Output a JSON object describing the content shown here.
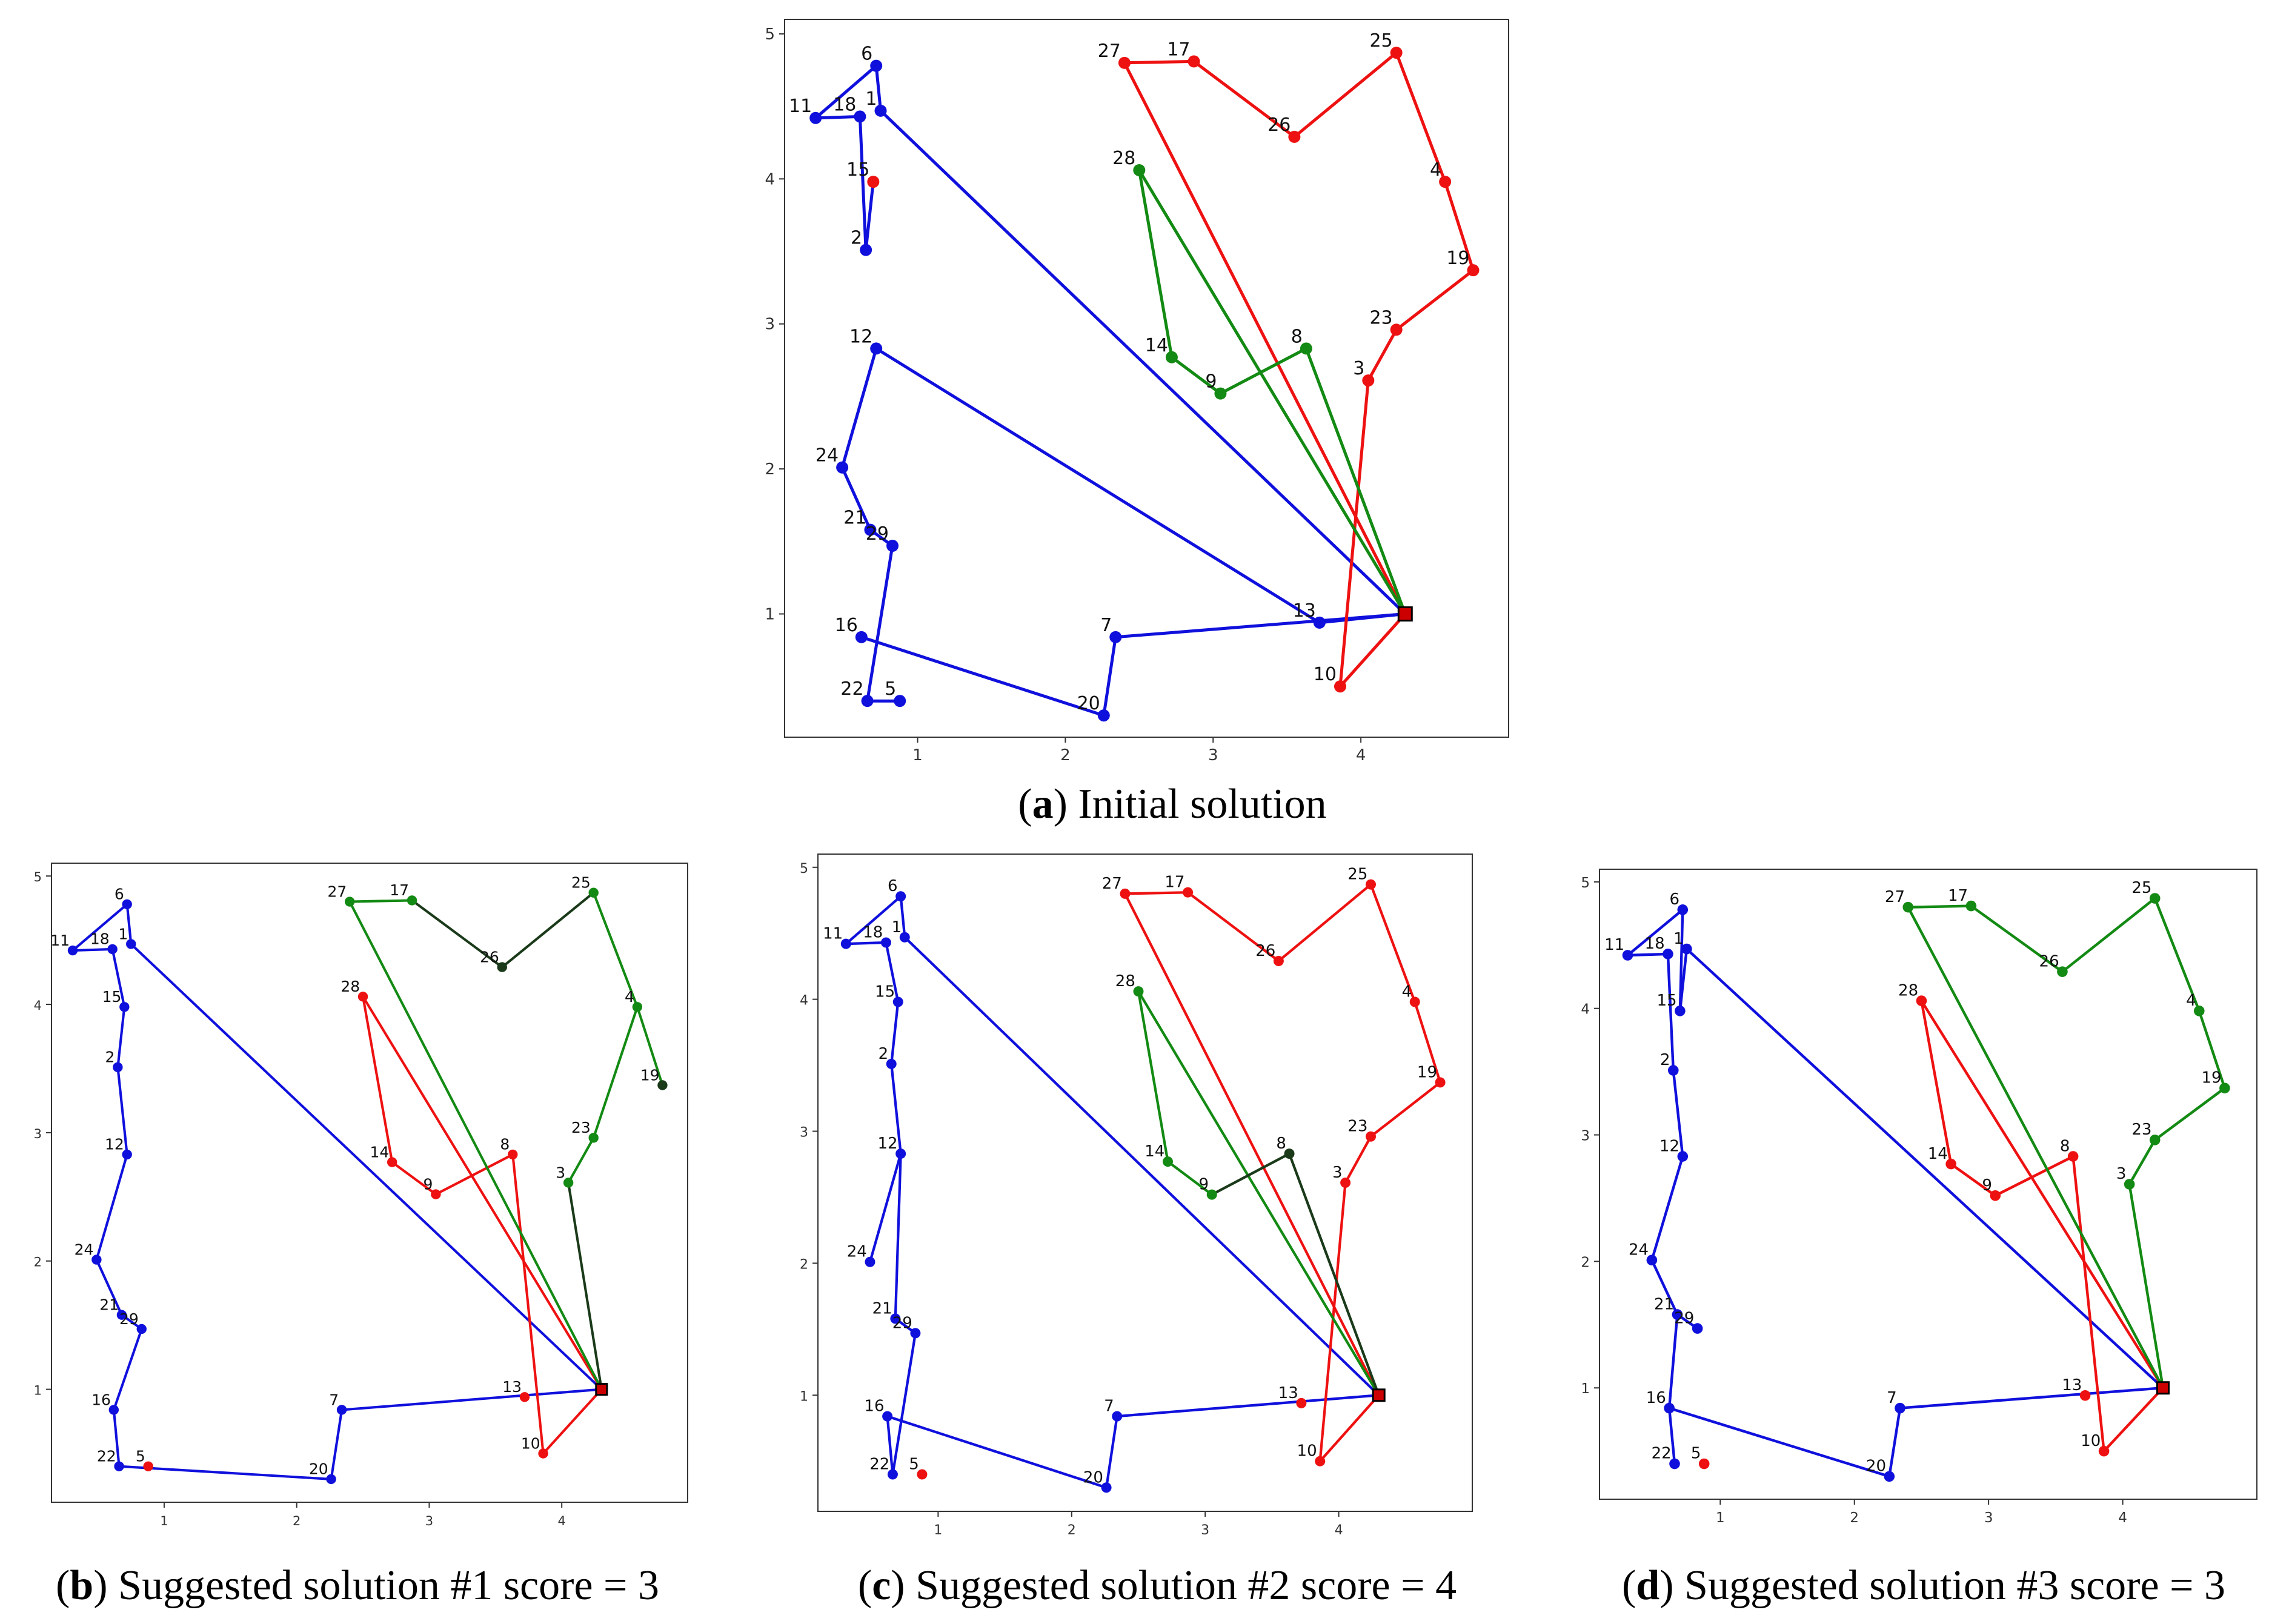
{
  "figure": {
    "depot": [
      4.3,
      1.0
    ],
    "captions": [
      {
        "letter": "a",
        "text": ") Initial solution"
      },
      {
        "letter": "b",
        "text": ") Suggested solution #1 score = 3"
      },
      {
        "letter": "c",
        "text": ") Suggested solution #2 score = 4"
      },
      {
        "letter": "d",
        "text": ") Suggested solution #3 score = 3"
      }
    ]
  },
  "colors": {
    "blue": "#1010dd",
    "red": "#ee1111",
    "green": "#138a13",
    "dark": "#1a3a1a",
    "depot": "#cc0000"
  },
  "chart_data": [
    {
      "type": "scatter",
      "title": "Initial solution",
      "xlim": [
        0.1,
        5.0
      ],
      "ylim": [
        0.15,
        5.1
      ],
      "xticks": [
        1,
        2,
        3,
        4
      ],
      "yticks": [
        1,
        2,
        3,
        4,
        5
      ],
      "points": [
        {
          "id": 6,
          "x": 0.72,
          "y": 4.78,
          "c": "blue"
        },
        {
          "id": 11,
          "x": 0.31,
          "y": 4.42,
          "c": "blue"
        },
        {
          "id": 18,
          "x": 0.61,
          "y": 4.43,
          "c": "blue"
        },
        {
          "id": 1,
          "x": 0.75,
          "y": 4.47,
          "c": "blue"
        },
        {
          "id": 15,
          "x": 0.7,
          "y": 3.98,
          "c": "red"
        },
        {
          "id": 2,
          "x": 0.65,
          "y": 3.51,
          "c": "blue"
        },
        {
          "id": 12,
          "x": 0.72,
          "y": 2.83,
          "c": "blue"
        },
        {
          "id": 24,
          "x": 0.49,
          "y": 2.01,
          "c": "blue"
        },
        {
          "id": 21,
          "x": 0.68,
          "y": 1.58,
          "c": "blue"
        },
        {
          "id": 29,
          "x": 0.83,
          "y": 1.47,
          "c": "blue"
        },
        {
          "id": 16,
          "x": 0.62,
          "y": 0.84,
          "c": "blue"
        },
        {
          "id": 22,
          "x": 0.66,
          "y": 0.4,
          "c": "blue"
        },
        {
          "id": 5,
          "x": 0.88,
          "y": 0.4,
          "c": "blue"
        },
        {
          "id": 20,
          "x": 2.26,
          "y": 0.3,
          "c": "blue"
        },
        {
          "id": 7,
          "x": 2.34,
          "y": 0.84,
          "c": "blue"
        },
        {
          "id": 13,
          "x": 3.72,
          "y": 0.94,
          "c": "blue"
        },
        {
          "id": 27,
          "x": 2.4,
          "y": 4.8,
          "c": "red"
        },
        {
          "id": 17,
          "x": 2.87,
          "y": 4.81,
          "c": "red"
        },
        {
          "id": 26,
          "x": 3.55,
          "y": 4.29,
          "c": "red"
        },
        {
          "id": 25,
          "x": 4.24,
          "y": 4.87,
          "c": "red"
        },
        {
          "id": 4,
          "x": 4.57,
          "y": 3.98,
          "c": "red"
        },
        {
          "id": 19,
          "x": 4.76,
          "y": 3.37,
          "c": "red"
        },
        {
          "id": 23,
          "x": 4.24,
          "y": 2.96,
          "c": "red"
        },
        {
          "id": 3,
          "x": 4.05,
          "y": 2.61,
          "c": "red"
        },
        {
          "id": 10,
          "x": 3.86,
          "y": 0.5,
          "c": "red"
        },
        {
          "id": 28,
          "x": 2.5,
          "y": 4.06,
          "c": "green"
        },
        {
          "id": 14,
          "x": 2.72,
          "y": 2.77,
          "c": "green"
        },
        {
          "id": 9,
          "x": 3.05,
          "y": 2.52,
          "c": "green"
        },
        {
          "id": 8,
          "x": 3.63,
          "y": 2.83,
          "c": "green"
        }
      ],
      "routes": [
        {
          "c": "blue",
          "seq": [
            "D",
            1,
            6,
            11,
            18,
            2,
            15
          ]
        },
        {
          "c": "blue",
          "seq": [
            "D",
            13,
            12,
            24,
            21,
            29,
            22,
            5
          ]
        },
        {
          "c": "blue",
          "seq": [
            "D",
            7,
            20,
            16
          ]
        },
        {
          "c": "red",
          "seq": [
            "D",
            27,
            17,
            26,
            25,
            4,
            19,
            23,
            3,
            10,
            "D"
          ]
        },
        {
          "c": "green",
          "seq": [
            "D",
            28,
            14,
            9,
            8,
            "D"
          ]
        }
      ]
    },
    {
      "type": "scatter",
      "title": "Suggested solution #1 score = 3",
      "xlim": [
        0.15,
        4.95
      ],
      "ylim": [
        0.12,
        5.1
      ],
      "xticks": [
        1,
        2,
        3,
        4
      ],
      "yticks": [
        1,
        2,
        3,
        4,
        5
      ],
      "points": [
        {
          "id": 6,
          "x": 0.72,
          "y": 4.78,
          "c": "blue"
        },
        {
          "id": 11,
          "x": 0.31,
          "y": 4.42,
          "c": "blue"
        },
        {
          "id": 18,
          "x": 0.61,
          "y": 4.43,
          "c": "blue"
        },
        {
          "id": 1,
          "x": 0.75,
          "y": 4.47,
          "c": "blue"
        },
        {
          "id": 15,
          "x": 0.7,
          "y": 3.98,
          "c": "blue"
        },
        {
          "id": 2,
          "x": 0.65,
          "y": 3.51,
          "c": "blue"
        },
        {
          "id": 12,
          "x": 0.72,
          "y": 2.83,
          "c": "blue"
        },
        {
          "id": 24,
          "x": 0.49,
          "y": 2.01,
          "c": "blue"
        },
        {
          "id": 21,
          "x": 0.68,
          "y": 1.58,
          "c": "blue"
        },
        {
          "id": 29,
          "x": 0.83,
          "y": 1.47,
          "c": "blue"
        },
        {
          "id": 16,
          "x": 0.62,
          "y": 0.84,
          "c": "blue"
        },
        {
          "id": 22,
          "x": 0.66,
          "y": 0.4,
          "c": "blue"
        },
        {
          "id": 5,
          "x": 0.88,
          "y": 0.4,
          "c": "red"
        },
        {
          "id": 20,
          "x": 2.26,
          "y": 0.3,
          "c": "blue"
        },
        {
          "id": 7,
          "x": 2.34,
          "y": 0.84,
          "c": "blue"
        },
        {
          "id": 13,
          "x": 3.72,
          "y": 0.94,
          "c": "red"
        },
        {
          "id": 27,
          "x": 2.4,
          "y": 4.8,
          "c": "green"
        },
        {
          "id": 17,
          "x": 2.87,
          "y": 4.81,
          "c": "green"
        },
        {
          "id": 26,
          "x": 3.55,
          "y": 4.29,
          "c": "dark"
        },
        {
          "id": 25,
          "x": 4.24,
          "y": 4.87,
          "c": "green"
        },
        {
          "id": 4,
          "x": 4.57,
          "y": 3.98,
          "c": "green"
        },
        {
          "id": 19,
          "x": 4.76,
          "y": 3.37,
          "c": "dark"
        },
        {
          "id": 23,
          "x": 4.24,
          "y": 2.96,
          "c": "green"
        },
        {
          "id": 3,
          "x": 4.05,
          "y": 2.61,
          "c": "green"
        },
        {
          "id": 10,
          "x": 3.86,
          "y": 0.5,
          "c": "red"
        },
        {
          "id": 28,
          "x": 2.5,
          "y": 4.06,
          "c": "red"
        },
        {
          "id": 14,
          "x": 2.72,
          "y": 2.77,
          "c": "red"
        },
        {
          "id": 9,
          "x": 3.05,
          "y": 2.52,
          "c": "red"
        },
        {
          "id": 8,
          "x": 3.63,
          "y": 2.83,
          "c": "red"
        }
      ],
      "routes": [
        {
          "c": "blue",
          "seq": [
            "D",
            1,
            6,
            11,
            18,
            15,
            2,
            12,
            24,
            21,
            29,
            16,
            22,
            20,
            7,
            "D"
          ]
        },
        {
          "c": "red",
          "seq": [
            "D",
            28,
            14,
            9,
            8,
            10,
            "D"
          ]
        },
        {
          "c": "green",
          "seq": [
            "D",
            27,
            17
          ]
        },
        {
          "c": "dark",
          "seq": [
            17,
            26,
            25
          ]
        },
        {
          "c": "green",
          "seq": [
            25,
            4,
            19
          ]
        },
        {
          "c": "green",
          "seq": [
            4,
            23,
            3
          ]
        },
        {
          "c": "dark",
          "seq": [
            3,
            "D"
          ]
        }
      ]
    },
    {
      "type": "scatter",
      "title": "Suggested solution #2 score = 4",
      "xlim": [
        0.1,
        5.0
      ],
      "ylim": [
        0.12,
        5.1
      ],
      "xticks": [
        1,
        2,
        3,
        4
      ],
      "yticks": [
        1,
        2,
        3,
        4,
        5
      ],
      "points": [
        {
          "id": 6,
          "x": 0.72,
          "y": 4.78,
          "c": "blue"
        },
        {
          "id": 11,
          "x": 0.31,
          "y": 4.42,
          "c": "blue"
        },
        {
          "id": 18,
          "x": 0.61,
          "y": 4.43,
          "c": "blue"
        },
        {
          "id": 1,
          "x": 0.75,
          "y": 4.47,
          "c": "blue"
        },
        {
          "id": 15,
          "x": 0.7,
          "y": 3.98,
          "c": "blue"
        },
        {
          "id": 2,
          "x": 0.65,
          "y": 3.51,
          "c": "blue"
        },
        {
          "id": 12,
          "x": 0.72,
          "y": 2.83,
          "c": "blue"
        },
        {
          "id": 24,
          "x": 0.49,
          "y": 2.01,
          "c": "blue"
        },
        {
          "id": 21,
          "x": 0.68,
          "y": 1.58,
          "c": "blue"
        },
        {
          "id": 29,
          "x": 0.83,
          "y": 1.47,
          "c": "blue"
        },
        {
          "id": 16,
          "x": 0.62,
          "y": 0.84,
          "c": "blue"
        },
        {
          "id": 22,
          "x": 0.66,
          "y": 0.4,
          "c": "blue"
        },
        {
          "id": 5,
          "x": 0.88,
          "y": 0.4,
          "c": "red"
        },
        {
          "id": 20,
          "x": 2.26,
          "y": 0.3,
          "c": "blue"
        },
        {
          "id": 7,
          "x": 2.34,
          "y": 0.84,
          "c": "blue"
        },
        {
          "id": 13,
          "x": 3.72,
          "y": 0.94,
          "c": "red"
        },
        {
          "id": 27,
          "x": 2.4,
          "y": 4.8,
          "c": "red"
        },
        {
          "id": 17,
          "x": 2.87,
          "y": 4.81,
          "c": "red"
        },
        {
          "id": 26,
          "x": 3.55,
          "y": 4.29,
          "c": "red"
        },
        {
          "id": 25,
          "x": 4.24,
          "y": 4.87,
          "c": "red"
        },
        {
          "id": 4,
          "x": 4.57,
          "y": 3.98,
          "c": "red"
        },
        {
          "id": 19,
          "x": 4.76,
          "y": 3.37,
          "c": "red"
        },
        {
          "id": 23,
          "x": 4.24,
          "y": 2.96,
          "c": "red"
        },
        {
          "id": 3,
          "x": 4.05,
          "y": 2.61,
          "c": "red"
        },
        {
          "id": 10,
          "x": 3.86,
          "y": 0.5,
          "c": "red"
        },
        {
          "id": 28,
          "x": 2.5,
          "y": 4.06,
          "c": "green"
        },
        {
          "id": 14,
          "x": 2.72,
          "y": 2.77,
          "c": "green"
        },
        {
          "id": 9,
          "x": 3.05,
          "y": 2.52,
          "c": "green"
        },
        {
          "id": 8,
          "x": 3.63,
          "y": 2.83,
          "c": "dark"
        }
      ],
      "routes": [
        {
          "c": "blue",
          "seq": [
            "D",
            1,
            6,
            11,
            18,
            15,
            2,
            12,
            24,
            12,
            21,
            29,
            22,
            16,
            20,
            7,
            "D"
          ]
        },
        {
          "c": "red",
          "seq": [
            "D",
            27,
            17,
            26,
            25,
            4,
            19,
            23,
            3,
            10,
            "D"
          ]
        },
        {
          "c": "green",
          "seq": [
            "D",
            28,
            14,
            9
          ]
        },
        {
          "c": "dark",
          "seq": [
            9,
            8,
            "D"
          ]
        }
      ]
    },
    {
      "type": "scatter",
      "title": "Suggested solution #3 score = 3",
      "xlim": [
        0.1,
        5.0
      ],
      "ylim": [
        0.12,
        5.1
      ],
      "xticks": [
        1,
        2,
        3,
        4
      ],
      "yticks": [
        1,
        2,
        3,
        4,
        5
      ],
      "points": [
        {
          "id": 6,
          "x": 0.72,
          "y": 4.78,
          "c": "blue"
        },
        {
          "id": 11,
          "x": 0.31,
          "y": 4.42,
          "c": "blue"
        },
        {
          "id": 18,
          "x": 0.61,
          "y": 4.43,
          "c": "blue"
        },
        {
          "id": 1,
          "x": 0.75,
          "y": 4.47,
          "c": "blue"
        },
        {
          "id": 15,
          "x": 0.7,
          "y": 3.98,
          "c": "blue"
        },
        {
          "id": 2,
          "x": 0.65,
          "y": 3.51,
          "c": "blue"
        },
        {
          "id": 12,
          "x": 0.72,
          "y": 2.83,
          "c": "blue"
        },
        {
          "id": 24,
          "x": 0.49,
          "y": 2.01,
          "c": "blue"
        },
        {
          "id": 21,
          "x": 0.68,
          "y": 1.58,
          "c": "blue"
        },
        {
          "id": 29,
          "x": 0.83,
          "y": 1.47,
          "c": "blue"
        },
        {
          "id": 16,
          "x": 0.62,
          "y": 0.84,
          "c": "blue"
        },
        {
          "id": 22,
          "x": 0.66,
          "y": 0.4,
          "c": "blue"
        },
        {
          "id": 5,
          "x": 0.88,
          "y": 0.4,
          "c": "red"
        },
        {
          "id": 20,
          "x": 2.26,
          "y": 0.3,
          "c": "blue"
        },
        {
          "id": 7,
          "x": 2.34,
          "y": 0.84,
          "c": "blue"
        },
        {
          "id": 13,
          "x": 3.72,
          "y": 0.94,
          "c": "red"
        },
        {
          "id": 27,
          "x": 2.4,
          "y": 4.8,
          "c": "green"
        },
        {
          "id": 17,
          "x": 2.87,
          "y": 4.81,
          "c": "green"
        },
        {
          "id": 26,
          "x": 3.55,
          "y": 4.29,
          "c": "green"
        },
        {
          "id": 25,
          "x": 4.24,
          "y": 4.87,
          "c": "green"
        },
        {
          "id": 4,
          "x": 4.57,
          "y": 3.98,
          "c": "green"
        },
        {
          "id": 19,
          "x": 4.76,
          "y": 3.37,
          "c": "green"
        },
        {
          "id": 23,
          "x": 4.24,
          "y": 2.96,
          "c": "green"
        },
        {
          "id": 3,
          "x": 4.05,
          "y": 2.61,
          "c": "green"
        },
        {
          "id": 10,
          "x": 3.86,
          "y": 0.5,
          "c": "red"
        },
        {
          "id": 28,
          "x": 2.5,
          "y": 4.06,
          "c": "red"
        },
        {
          "id": 14,
          "x": 2.72,
          "y": 2.77,
          "c": "red"
        },
        {
          "id": 9,
          "x": 3.05,
          "y": 2.52,
          "c": "red"
        },
        {
          "id": 8,
          "x": 3.63,
          "y": 2.83,
          "c": "red"
        }
      ],
      "routes": [
        {
          "c": "blue",
          "seq": [
            "D",
            1,
            15,
            6,
            11,
            18,
            2,
            12,
            24,
            21,
            29
          ]
        },
        {
          "c": "blue",
          "seq": [
            21,
            16,
            22
          ]
        },
        {
          "c": "blue",
          "seq": [
            16,
            20,
            7,
            "D"
          ]
        },
        {
          "c": "red",
          "seq": [
            "D",
            28,
            14,
            9,
            8,
            10,
            "D"
          ]
        },
        {
          "c": "green",
          "seq": [
            "D",
            27,
            17,
            26,
            25,
            4,
            19,
            23,
            3,
            "D"
          ]
        }
      ]
    }
  ]
}
